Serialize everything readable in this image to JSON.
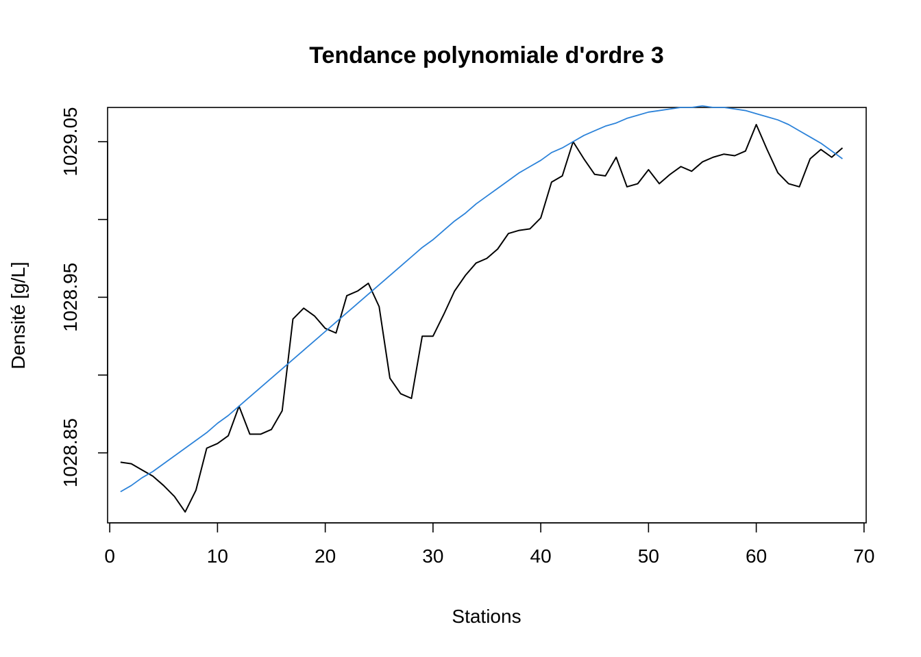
{
  "chart_data": {
    "type": "line",
    "title": "Tendance polynomiale d'ordre 3",
    "xlabel": "Stations",
    "ylabel": "Densité [g/L]",
    "xlim": [
      -0.2,
      70.2
    ],
    "ylim": [
      1028.805,
      1029.072
    ],
    "x_ticks": [
      0,
      10,
      20,
      30,
      40,
      50,
      60,
      70
    ],
    "x_tick_labels": [
      "0",
      "10",
      "20",
      "30",
      "40",
      "50",
      "60",
      "70"
    ],
    "y_ticks": [
      1028.85,
      1028.9,
      1028.95,
      1029.0,
      1029.05
    ],
    "y_tick_labels": [
      "1028.85",
      "",
      "1028.95",
      "",
      "1029.05"
    ],
    "grid": false,
    "legend": "none",
    "series": [
      {
        "color": "#000000",
        "x": [
          1,
          2,
          3,
          4,
          5,
          6,
          7,
          8,
          9,
          10,
          11,
          12,
          13,
          14,
          15,
          16,
          17,
          18,
          19,
          20,
          21,
          22,
          23,
          24,
          25,
          26,
          27,
          28,
          29,
          30,
          31,
          32,
          33,
          34,
          35,
          36,
          37,
          38,
          39,
          40,
          41,
          42,
          43,
          44,
          45,
          46,
          47,
          48,
          49,
          50,
          51,
          52,
          53,
          54,
          55,
          56,
          57,
          58,
          59,
          60,
          61,
          62,
          63,
          64,
          65,
          66,
          67,
          68
        ],
        "y": [
          1028.844,
          1028.843,
          1028.839,
          1028.835,
          1028.829,
          1028.822,
          1028.812,
          1028.826,
          1028.853,
          1028.856,
          1028.861,
          1028.88,
          1028.862,
          1028.862,
          1028.865,
          1028.877,
          1028.936,
          1028.943,
          1028.938,
          1028.93,
          1028.927,
          1028.951,
          1028.954,
          1028.959,
          1028.944,
          1028.898,
          1028.888,
          1028.885,
          1028.925,
          1028.925,
          1028.939,
          1028.954,
          1028.964,
          1028.972,
          1028.975,
          1028.981,
          1028.991,
          1028.993,
          1028.994,
          1029.001,
          1029.024,
          1029.028,
          1029.05,
          1029.039,
          1029.029,
          1029.028,
          1029.04,
          1029.021,
          1029.023,
          1029.032,
          1029.023,
          1029.029,
          1029.034,
          1029.031,
          1029.037,
          1029.04,
          1029.042,
          1029.041,
          1029.044,
          1029.061,
          1029.045,
          1029.03,
          1029.023,
          1029.021,
          1029.039,
          1029.045,
          1029.04,
          1029.046
        ]
      },
      {
        "color": "#2b82d9",
        "x": [
          1,
          2,
          3,
          4,
          5,
          6,
          7,
          8,
          9,
          10,
          11,
          12,
          13,
          14,
          15,
          16,
          17,
          18,
          19,
          20,
          21,
          22,
          23,
          24,
          25,
          26,
          27,
          28,
          29,
          30,
          31,
          32,
          33,
          34,
          35,
          36,
          37,
          38,
          39,
          40,
          41,
          42,
          43,
          44,
          45,
          46,
          47,
          48,
          49,
          50,
          51,
          52,
          53,
          54,
          55,
          56,
          57,
          58,
          59,
          60,
          61,
          62,
          63,
          64,
          65,
          66,
          67,
          68
        ],
        "y": [
          1028.825,
          1028.829,
          1028.834,
          1028.838,
          1028.843,
          1028.848,
          1028.853,
          1028.858,
          1028.863,
          1028.869,
          1028.874,
          1028.88,
          1028.886,
          1028.892,
          1028.898,
          1028.904,
          1028.91,
          1028.916,
          1028.922,
          1028.928,
          1028.934,
          1028.94,
          1028.946,
          1028.952,
          1028.958,
          1028.964,
          1028.97,
          1028.976,
          1028.982,
          1028.987,
          1028.993,
          1028.999,
          1029.004,
          1029.01,
          1029.015,
          1029.02,
          1029.025,
          1029.03,
          1029.034,
          1029.038,
          1029.043,
          1029.046,
          1029.05,
          1029.054,
          1029.057,
          1029.06,
          1029.062,
          1029.065,
          1029.067,
          1029.069,
          1029.07,
          1029.071,
          1029.072,
          1029.072,
          1029.073,
          1029.072,
          1029.072,
          1029.071,
          1029.07,
          1029.068,
          1029.066,
          1029.064,
          1029.061,
          1029.057,
          1029.053,
          1029.049,
          1029.044,
          1029.039
        ]
      }
    ]
  }
}
